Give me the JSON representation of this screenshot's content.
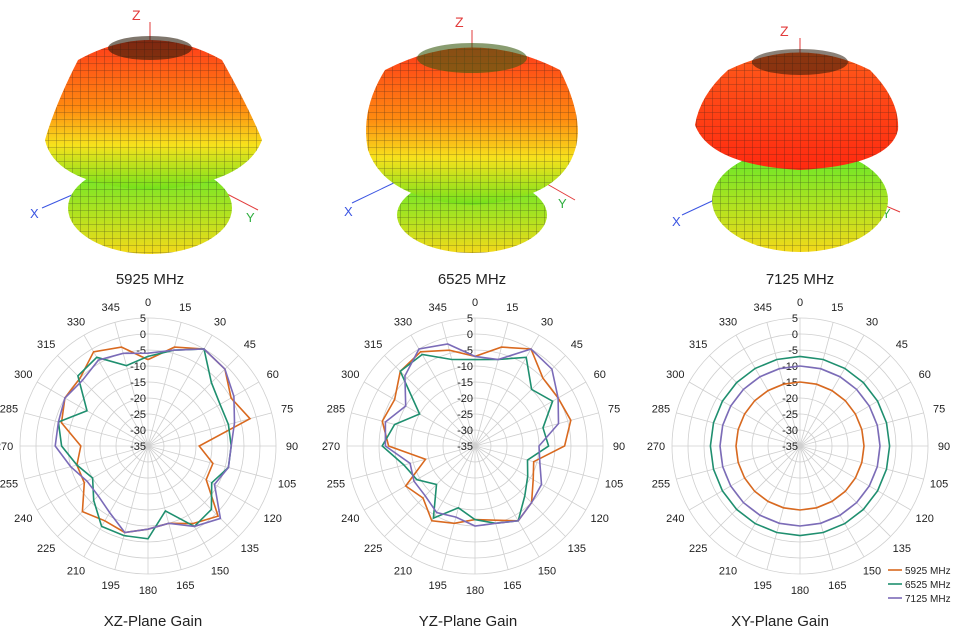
{
  "frequency_labels": [
    "5925 MHz",
    "6525 MHz",
    "7125 MHz"
  ],
  "plane_labels": [
    "XZ-Plane Gain",
    "YZ-Plane Gain",
    "XY-Plane Gain"
  ],
  "axis_letters": {
    "z": "Z",
    "x": "X",
    "y": "Y"
  },
  "colors": {
    "f5925": "#d9691f",
    "f6525": "#1f8f6f",
    "f7125": "#7b6bb8",
    "grid": "#cfcfcf",
    "axisZ": "#e23b3b",
    "axisX": "#3b55e2",
    "axisY": "#2fae3f"
  },
  "chart_data": [
    {
      "type": "polar",
      "title": "XZ-Plane Gain",
      "angles": [
        0,
        15,
        30,
        45,
        60,
        75,
        90,
        105,
        120,
        135,
        150,
        165,
        180,
        195,
        210,
        225,
        240,
        255,
        270,
        285,
        300,
        315,
        330,
        345
      ],
      "angle_labels": [
        "0",
        "15",
        "30",
        "45",
        "60",
        "75",
        "90",
        "105",
        "120",
        "135",
        "150",
        "165",
        "180",
        "195",
        "210",
        "225",
        "240",
        "255",
        "270",
        "285",
        "300",
        "315",
        "330",
        "345"
      ],
      "rlim": [
        -35,
        5
      ],
      "r_ticks": [
        5,
        0,
        -5,
        -10,
        -15,
        -20,
        -25,
        -30,
        -35
      ],
      "legend": [
        "5925 MHz",
        "6525 MHz",
        "7125 MHz"
      ],
      "series": [
        {
          "name": "5925 MHz",
          "values": [
            -8,
            -3,
            0,
            -1,
            -5,
            -2,
            -19,
            -14,
            -14,
            -4,
            -7,
            -10,
            -9,
            -7,
            -8,
            -6,
            -12,
            -12,
            -14,
            -7,
            -5,
            -5,
            -1,
            -3
          ]
        },
        {
          "name": "6525 MHz",
          "values": [
            -7,
            -4,
            0,
            -7,
            -9,
            -9,
            -9,
            -9,
            -12,
            -7,
            -6,
            -14,
            -6,
            -6,
            -6,
            -11,
            -15,
            -12,
            -8,
            -6,
            -13,
            -4,
            -3,
            -9
          ]
        },
        {
          "name": "7125 MHz",
          "values": [
            -6,
            -4,
            0,
            -1,
            -4,
            -7,
            -9,
            -9,
            -11,
            -3,
            -6,
            -10,
            -9,
            -7,
            -11,
            -13,
            -13,
            -10,
            -6,
            -6,
            -5,
            -6,
            -4,
            -5
          ]
        }
      ]
    },
    {
      "type": "polar",
      "title": "YZ-Plane Gain",
      "angles": [
        0,
        15,
        30,
        45,
        60,
        75,
        90,
        105,
        120,
        135,
        150,
        165,
        180,
        195,
        210,
        225,
        240,
        255,
        270,
        285,
        300,
        315,
        330,
        345
      ],
      "angle_labels": [
        "0",
        "15",
        "30",
        "45",
        "60",
        "75",
        "90",
        "105",
        "120",
        "135",
        "150",
        "165",
        "180",
        "195",
        "210",
        "225",
        "240",
        "255",
        "270",
        "285",
        "300",
        "315",
        "330",
        "345"
      ],
      "rlim": [
        -35,
        5
      ],
      "r_ticks": [
        5,
        0,
        -5,
        -10,
        -15,
        -20,
        -25,
        -30,
        -35
      ],
      "legend": [
        "5925 MHz",
        "6525 MHz",
        "7125 MHz"
      ],
      "series": [
        {
          "name": "5925 MHz",
          "values": [
            -7,
            -3,
            0,
            -5,
            -5,
            -4,
            -7,
            -16,
            -14,
            -10,
            -8,
            -11,
            -12,
            -10,
            -8,
            -12,
            -10,
            -19,
            -8,
            -5,
            -6,
            -2,
            -1,
            -4
          ]
        },
        {
          "name": "6525 MHz",
          "values": [
            -8,
            -7,
            -3,
            -10,
            -7,
            -13,
            -12,
            -18,
            -16,
            -13,
            -8,
            -10,
            -12,
            -15,
            -9,
            -18,
            -14,
            -12,
            -6,
            -9,
            -15,
            -2,
            -2,
            -7
          ]
        },
        {
          "name": "7125 MHz",
          "values": [
            -7,
            -7,
            0,
            -1,
            -5,
            -8,
            -15,
            -14,
            -11,
            -10,
            -8,
            -10,
            -10,
            -12,
            -11,
            -13,
            -13,
            -14,
            -7,
            -6,
            -10,
            -4,
            0,
            -2
          ]
        }
      ]
    },
    {
      "type": "polar",
      "title": "XY-Plane Gain",
      "angles": [
        0,
        15,
        30,
        45,
        60,
        75,
        90,
        105,
        120,
        135,
        150,
        165,
        180,
        195,
        210,
        225,
        240,
        255,
        270,
        285,
        300,
        315,
        330,
        345
      ],
      "angle_labels": [
        "0",
        "15",
        "30",
        "45",
        "60",
        "75",
        "90",
        "105",
        "120",
        "135",
        "150",
        "165",
        "180",
        "195",
        "210",
        "225",
        "240",
        "255",
        "270",
        "285",
        "300",
        "315",
        "330",
        "345"
      ],
      "rlim": [
        -35,
        5
      ],
      "r_ticks": [
        5,
        0,
        -5,
        -10,
        -15,
        -20,
        -25,
        -30,
        -35
      ],
      "legend": [
        "5925 MHz",
        "6525 MHz",
        "7125 MHz"
      ],
      "series": [
        {
          "name": "5925 MHz",
          "values": [
            -15,
            -15,
            -15,
            -15,
            -15,
            -15,
            -15,
            -15,
            -15,
            -15,
            -15,
            -15,
            -15,
            -15,
            -15,
            -15,
            -15,
            -15,
            -15,
            -15,
            -15,
            -15,
            -15,
            -15
          ]
        },
        {
          "name": "6525 MHz",
          "values": [
            -7,
            -7,
            -7,
            -7,
            -7,
            -7,
            -7,
            -7,
            -7,
            -7,
            -7,
            -7,
            -7,
            -7,
            -7,
            -7,
            -7,
            -7,
            -7,
            -7,
            -7,
            -7,
            -7,
            -7
          ]
        },
        {
          "name": "7125 MHz",
          "values": [
            -10,
            -10,
            -10,
            -10,
            -10,
            -10,
            -10,
            -10,
            -10,
            -10,
            -10,
            -10,
            -10,
            -10,
            -10,
            -10,
            -10,
            -10,
            -10,
            -10,
            -10,
            -10,
            -10,
            -10
          ]
        }
      ]
    }
  ]
}
